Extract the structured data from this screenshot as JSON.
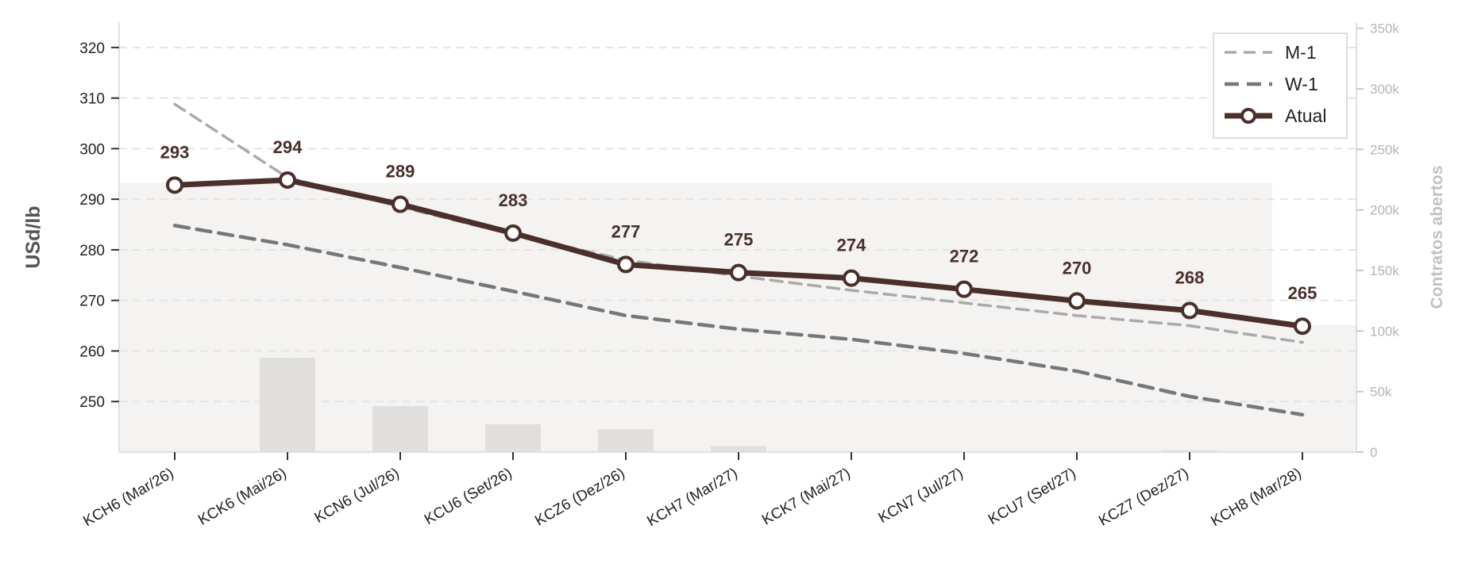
{
  "chart_data": {
    "type": "line",
    "categories": [
      "KCH6 (Mar/26)",
      "KCK6 (Mai/26)",
      "KCN6 (Jul/26)",
      "KCU6 (Set/26)",
      "KCZ6 (Dez/26)",
      "KCH7 (Mar/27)",
      "KCK7 (Mai/27)",
      "KCN7 (Jul/27)",
      "KCU7 (Set/27)",
      "KCZ7 (Dez/27)",
      "KCH8 (Mar/28)"
    ],
    "series": [
      {
        "name": "M-1",
        "values": [
          308.8,
          294.3,
          288.5,
          283.0,
          278.0,
          274.8,
          272.0,
          269.5,
          267.0,
          265.0,
          261.7
        ],
        "color": "#aaaaaa",
        "style": "dashed-light"
      },
      {
        "name": "W-1",
        "values": [
          284.8,
          281.0,
          276.5,
          271.8,
          267.0,
          264.3,
          262.3,
          259.5,
          256.0,
          251.0,
          247.4
        ],
        "color": "#777777",
        "style": "dashed"
      },
      {
        "name": "Atual",
        "values": [
          292.8,
          293.8,
          289.0,
          283.3,
          277.1,
          275.5,
          274.4,
          272.2,
          269.9,
          268.0,
          264.9
        ],
        "color": "#4a2f2b",
        "style": "solid-markers"
      }
    ],
    "data_labels": [
      "293",
      "294",
      "289",
      "283",
      "277",
      "275",
      "274",
      "272",
      "270",
      "268",
      "265"
    ],
    "open_interest": {
      "name": "Contratos abertos",
      "bar_values": [
        0,
        78000,
        38000,
        23000,
        19000,
        5000,
        0,
        0,
        0,
        1500,
        0
      ],
      "total_area": 222000,
      "total_area_end": 105000,
      "color": "#e0dfde",
      "area_color": "#f4f3f2"
    },
    "ylabel": "USd/lb",
    "ylabel_right": "Contratos abertos",
    "ylim": [
      240,
      325
    ],
    "ylim_right": [
      0,
      355000
    ],
    "yticks": [
      250,
      260,
      270,
      280,
      290,
      300,
      310,
      320
    ],
    "yticks_right": [
      0,
      50000,
      100000,
      150000,
      200000,
      250000,
      300000,
      350000
    ],
    "yticks_right_labels": [
      "0",
      "50k",
      "100k",
      "150k",
      "200k",
      "250k",
      "300k",
      "350k"
    ],
    "grid": true,
    "legend_position": "top-right"
  }
}
